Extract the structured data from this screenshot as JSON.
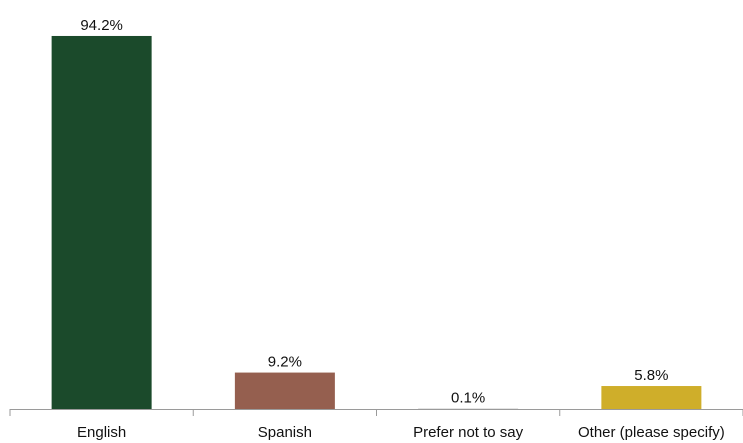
{
  "chart_data": {
    "type": "bar",
    "categories": [
      "English",
      "Spanish",
      "Prefer not to say",
      "Other (please specify)"
    ],
    "values": [
      94.2,
      9.2,
      0.1,
      5.8
    ],
    "value_labels": [
      "94.2%",
      "9.2%",
      "0.1%",
      "5.8%"
    ],
    "colors": [
      "#1b4a2b",
      "#955f4f",
      "#c8c8c8",
      "#cfae2a"
    ],
    "ylim": [
      0,
      100
    ],
    "grid": false,
    "legend": "none"
  }
}
